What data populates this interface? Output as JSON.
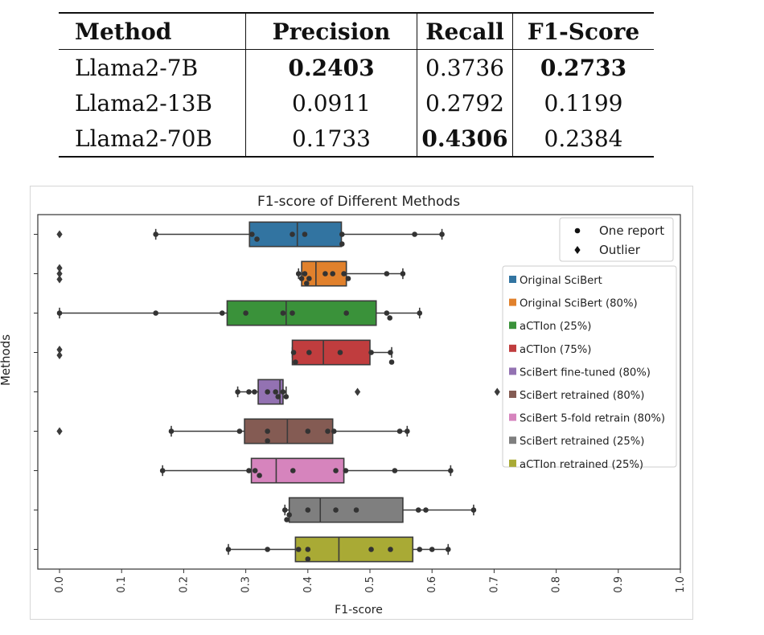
{
  "table": {
    "headers": [
      "Method",
      "Precision",
      "Recall",
      "F1-Score"
    ],
    "rows": [
      [
        "Llama2-7B",
        "0.2403",
        "0.3736",
        "0.2733"
      ],
      [
        "Llama2-13B",
        "0.0911",
        "0.2792",
        "0.1199"
      ],
      [
        "Llama2-70B",
        "0.1733",
        "0.4306",
        "0.2384"
      ]
    ],
    "bold": [
      [
        true,
        false,
        true
      ],
      [
        false,
        false,
        false
      ],
      [
        false,
        true,
        false
      ]
    ]
  },
  "chart_data": {
    "type": "box",
    "orientation": "horizontal",
    "title": "F1-score of Different Methods",
    "xlabel": "F1-score",
    "ylabel": "Methods",
    "xlim": [
      -0.035,
      1.0
    ],
    "xticks": [
      "0.0",
      "0.1",
      "0.2",
      "0.3",
      "0.4",
      "0.5",
      "0.6",
      "0.7",
      "0.8",
      "0.9",
      "1.0"
    ],
    "grid": false,
    "marker_legend": {
      "placement": "top-right",
      "items": [
        {
          "marker": "dot",
          "label": "One report"
        },
        {
          "marker": "diamond",
          "label": "Outlier"
        }
      ]
    },
    "legend_placement": "right",
    "series": [
      {
        "name": "Original SciBert",
        "color": "#3274a1",
        "q1": 0.306,
        "median": 0.383,
        "q3": 0.454,
        "whisker_low": 0.155,
        "whisker_high": 0.616,
        "outliers": [
          0.0
        ],
        "points": [
          0.155,
          0.31,
          0.318,
          0.375,
          0.395,
          0.455,
          0.455,
          0.572,
          0.616
        ]
      },
      {
        "name": "Original SciBert (80%)",
        "color": "#e1812c",
        "q1": 0.39,
        "median": 0.413,
        "q3": 0.462,
        "whisker_low": 0.385,
        "whisker_high": 0.553,
        "outliers": [
          0.0,
          0.0,
          0.0
        ],
        "points": [
          0.385,
          0.39,
          0.395,
          0.398,
          0.402,
          0.428,
          0.44,
          0.458,
          0.465,
          0.527,
          0.553
        ]
      },
      {
        "name": "aCTIon (25%)",
        "color": "#3a923a",
        "q1": 0.27,
        "median": 0.365,
        "q3": 0.51,
        "whisker_low": 0.0,
        "whisker_high": 0.58,
        "outliers": [],
        "points": [
          0.0,
          0.155,
          0.262,
          0.3,
          0.36,
          0.375,
          0.462,
          0.527,
          0.532,
          0.58
        ]
      },
      {
        "name": "aCTIon (75%)",
        "color": "#c03d3e",
        "q1": 0.375,
        "median": 0.425,
        "q3": 0.5,
        "whisker_low": 0.375,
        "whisker_high": 0.535,
        "outliers": [
          0.0,
          0.0
        ],
        "points": [
          0.377,
          0.38,
          0.402,
          0.452,
          0.502,
          0.533,
          0.535
        ]
      },
      {
        "name": "SciBert fine-tuned (80%)",
        "color": "#9372b2",
        "q1": 0.32,
        "median": 0.355,
        "q3": 0.36,
        "whisker_low": 0.287,
        "whisker_high": 0.365,
        "outliers": [
          0.48,
          0.705
        ],
        "points": [
          0.287,
          0.305,
          0.314,
          0.335,
          0.348,
          0.352,
          0.36,
          0.365
        ]
      },
      {
        "name": "SciBert retrained (80%)",
        "color": "#845b53",
        "q1": 0.298,
        "median": 0.367,
        "q3": 0.44,
        "whisker_low": 0.18,
        "whisker_high": 0.56,
        "outliers": [
          0.0
        ],
        "points": [
          0.18,
          0.29,
          0.335,
          0.335,
          0.4,
          0.432,
          0.442,
          0.548,
          0.56
        ]
      },
      {
        "name": "SciBert 5-fold retrain (80%)",
        "color": "#d684bd",
        "q1": 0.309,
        "median": 0.349,
        "q3": 0.458,
        "whisker_low": 0.166,
        "whisker_high": 0.63,
        "outliers": [],
        "points": [
          0.166,
          0.305,
          0.315,
          0.322,
          0.376,
          0.445,
          0.461,
          0.54,
          0.63
        ]
      },
      {
        "name": "SciBert retrained (25%)",
        "color": "#7f7f7f",
        "q1": 0.37,
        "median": 0.42,
        "q3": 0.553,
        "whisker_low": 0.363,
        "whisker_high": 0.667,
        "outliers": [],
        "points": [
          0.363,
          0.366,
          0.37,
          0.4,
          0.445,
          0.478,
          0.578,
          0.59,
          0.667
        ]
      },
      {
        "name": "aCTIon retrained (25%)",
        "color": "#a9aa35",
        "q1": 0.38,
        "median": 0.45,
        "q3": 0.569,
        "whisker_low": 0.272,
        "whisker_high": 0.626,
        "outliers": [],
        "points": [
          0.272,
          0.335,
          0.385,
          0.4,
          0.4,
          0.502,
          0.533,
          0.58,
          0.6,
          0.626
        ]
      }
    ]
  }
}
